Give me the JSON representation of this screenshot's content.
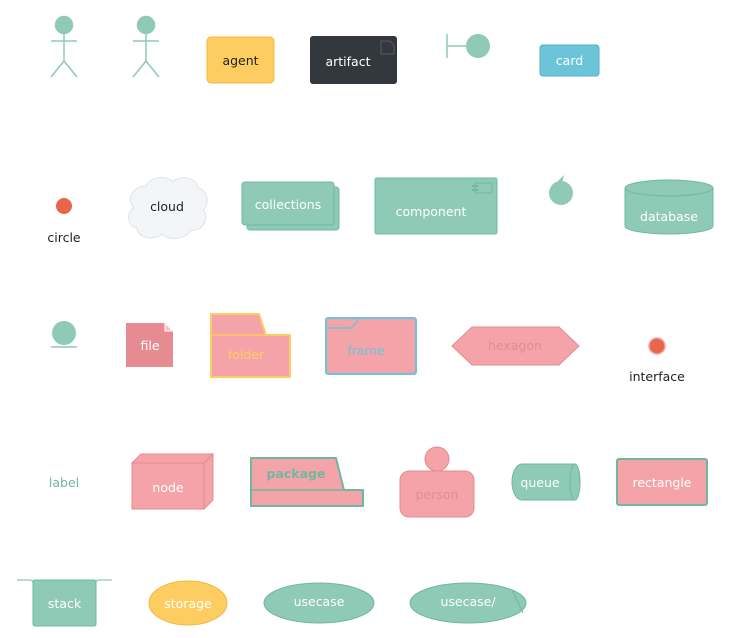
{
  "colors": {
    "teal": "#8ecab5",
    "teal_dark": "#6fb8a0",
    "orange_dot": "#e8674a",
    "yellow": "#fecd61",
    "yellow_dark": "#f0b940",
    "dark": "#33383f",
    "blue": "#6bc4d8",
    "pink": "#f4a3a8",
    "pink_dark": "#e68a90",
    "pink_file": "#e68b92",
    "cloud": "#f3f5f7",
    "text_dark": "#222222",
    "text_white": "#ffffff"
  },
  "labels": {
    "agent": "agent",
    "artifact": "artifact",
    "card": "card",
    "circle": "circle",
    "cloud": "cloud",
    "collections": "collections",
    "component": "component",
    "database": "database",
    "file": "file",
    "folder": "folder",
    "frame": "frame",
    "hexagon": "hexagon",
    "interface": "interface",
    "label": "label",
    "node": "node",
    "package": "package",
    "person": "person",
    "queue": "queue",
    "rectangle": "rectangle",
    "stack": "stack",
    "storage": "storage",
    "usecase": "usecase",
    "usecase_business": "usecase/"
  }
}
